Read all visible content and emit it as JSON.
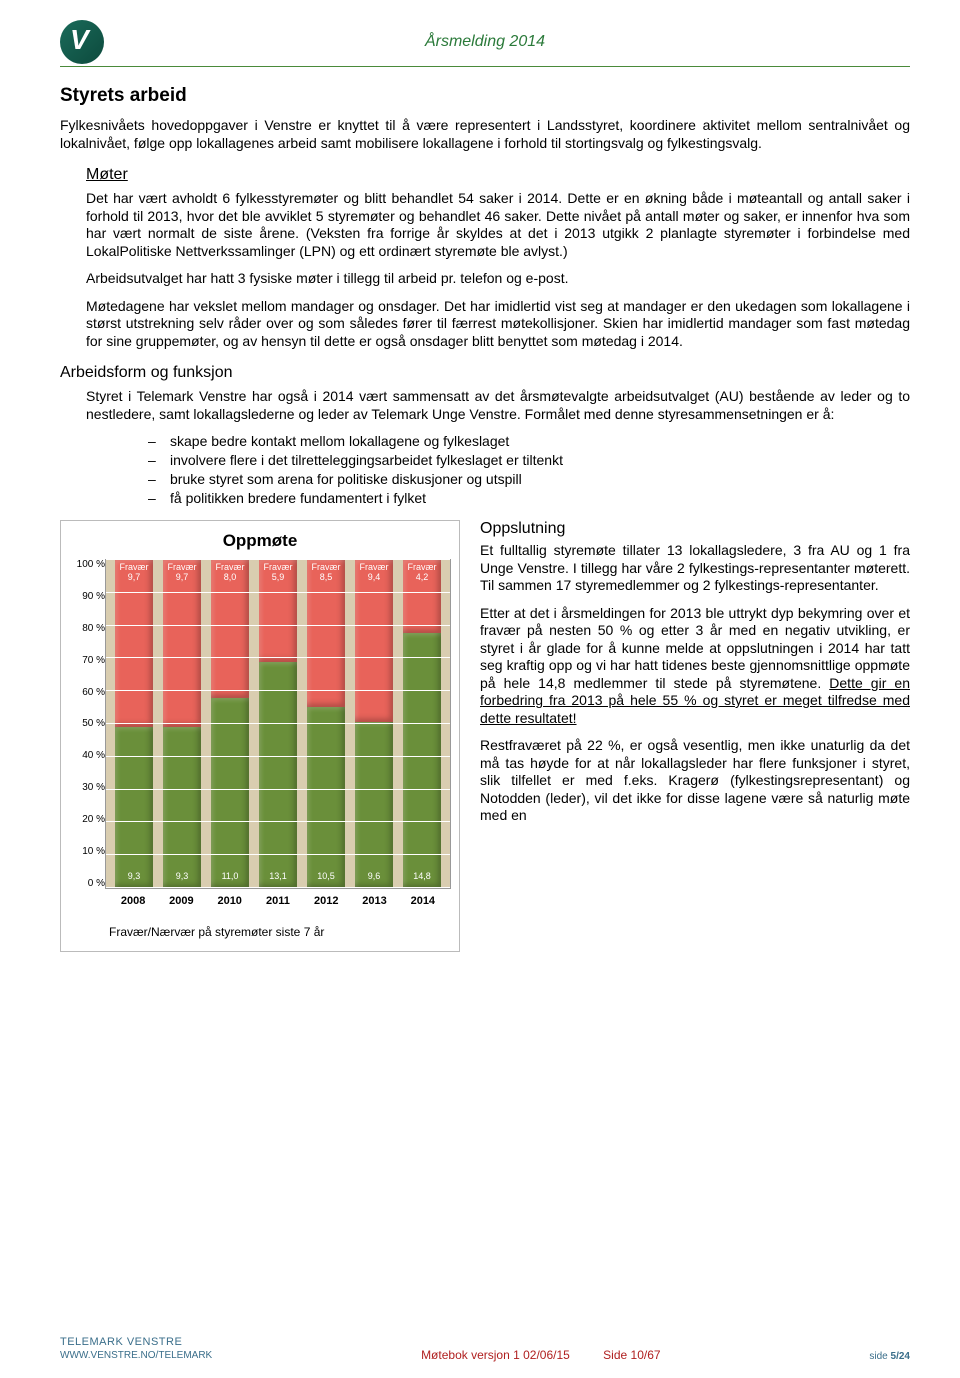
{
  "header": {
    "doc_title": "Årsmelding 2014"
  },
  "section": {
    "title": "Styrets arbeid",
    "p1": "Fylkesnivåets hovedoppgaver i Venstre er knyttet til å være representert i Landsstyret, koordinere aktivitet mellom sentralnivået og lokalnivået, følge opp lokallagenes arbeid samt mobilisere lokallagene i forhold til stortingsvalg og fylkestingsvalg.",
    "moter_title": "Møter",
    "moter_p1": "Det har vært avholdt 6 fylkesstyremøter og blitt behandlet 54 saker i 2014. Dette er en økning både i møteantall og antall saker i forhold til 2013, hvor det ble avviklet 5 styremøter og behandlet 46 saker. Dette nivået på antall møter og saker, er innenfor hva som har vært normalt de siste årene. (Veksten fra forrige år skyldes at det i 2013 utgikk 2 planlagte styremøter i forbindelse med LokalPolitiske Nettverkssamlinger (LPN) og ett ordinært styremøte ble avlyst.)",
    "moter_p2": "Arbeidsutvalget har hatt 3 fysiske møter i tillegg til arbeid pr. telefon og e-post.",
    "moter_p3": "Møtedagene har vekslet mellom mandager og onsdager. Det har imidlertid vist seg at mandager er den ukedagen som lokallagene i størst utstrekning selv råder over og som således fører til færrest møtekollisjoner. Skien har imidlertid mandager som fast møtedag for sine gruppemøter, og av hensyn til dette er også onsdager blitt benyttet som møtedag i 2014.",
    "arbeidsform_title": "Arbeidsform og funksjon",
    "arbeidsform_p1": "Styret i Telemark Venstre har også i 2014 vært sammensatt av det årsmøtevalgte arbeidsutvalget (AU) bestående av leder og to nestledere, samt lokallagslederne og leder av Telemark Unge Venstre. Formålet med denne styresammensetningen er å:",
    "bullets": [
      "skape bedre kontakt mellom lokallagene og fylkeslaget",
      "involvere flere i det tilretteleggingsarbeidet fylkeslaget er tiltenkt",
      "bruke styret som arena for politiske diskusjoner og utspill",
      "få politikken bredere fundamentert i fylket"
    ],
    "oppslutning_title": "Oppslutning",
    "opp_p1": "Et fulltallig styremøte tillater 13 lokallagsledere, 3 fra AU og 1 fra Unge Venstre. I tillegg har våre 2 fylkestings-representanter møterett. Til sammen 17 styremedlemmer og 2 fylkestings-representanter.",
    "opp_p2_a": "Etter at det i årsmeldingen for 2013 ble uttrykt dyp bekymring over et fravær på nesten 50 % og etter 3 år med en negativ utvikling, er styret i år glade for å kunne melde at oppslutningen i 2014 har tatt seg kraftig opp og vi har hatt tidenes beste gjennomsnittlige oppmøte på hele 14,8 medlemmer til stede på styremøtene. ",
    "opp_p2_b": "Dette gir en forbedring fra 2013 på hele 55 % og styret er meget tilfredse med dette resultatet!",
    "opp_p3": "Restfraværet på 22 %, er også vesentlig, men ikke unaturlig da det må tas høyde for at når lokallagsleder har flere funksjoner i styret, slik tilfellet er med f.eks. Kragerø (fylkestingsrepresentant) og Notodden (leder), vil det ikke for disse lagene være så naturlig møte med en"
  },
  "chart": {
    "title": "Oppmøte",
    "caption": "Fravær/Nærvær på styremøter siste 7 år",
    "ylim": [
      0,
      100
    ],
    "ytick_step": 10,
    "y_suffix": " %",
    "plot_bg": "#d9cdb0",
    "grid_color": "#ffffff",
    "attend_color": "#6a8f3a",
    "absent_color": "#e8635a",
    "label_color": "#ffffff",
    "cat_fontsize": 11,
    "val_fontsize": 9,
    "border_color": "#999999",
    "max_total": 19,
    "years": [
      "2008",
      "2009",
      "2010",
      "2011",
      "2012",
      "2013",
      "2014"
    ],
    "attend": [
      9.3,
      9.3,
      11.0,
      13.1,
      10.5,
      9.6,
      14.8
    ],
    "absent": [
      9.7,
      9.7,
      8.0,
      5.9,
      8.5,
      9.4,
      4.2
    ],
    "attend_labels": [
      "9,3",
      "9,3",
      "11,0",
      "13,1",
      "10,5",
      "9,6",
      "14,8"
    ],
    "absent_labels": [
      "Fravær 9,7",
      "Fravær 9,7",
      "Fravær 8,0",
      "Fravær 5,9",
      "Fravær 8,5",
      "Fravær 9,4",
      "Fravær 4,2"
    ]
  },
  "footer": {
    "org": "TELEMARK VENSTRE",
    "url": "WWW.VENSTRE.NO/TELEMARK",
    "page_label": "side",
    "page": "5/24",
    "motebok": "Møtebok versjon 1  02/06/15",
    "side2": "Side 10/67"
  }
}
